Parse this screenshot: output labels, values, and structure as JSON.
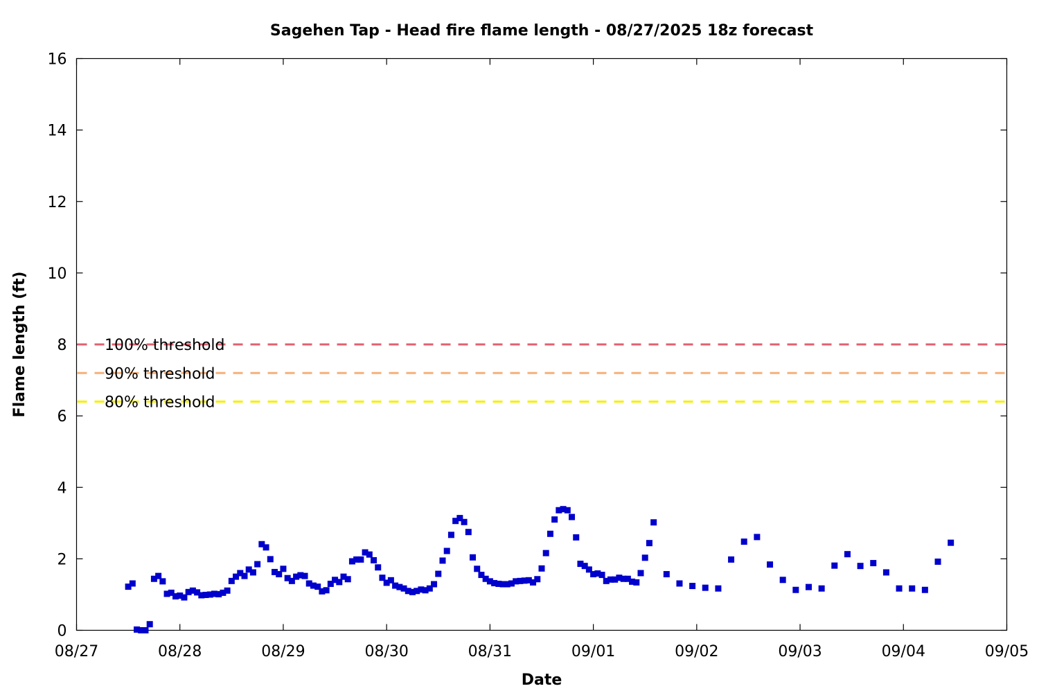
{
  "chart_data": {
    "type": "scatter",
    "title": "Sagehen Tap - Head fire flame length - 08/27/2025 18z forecast",
    "xlabel": "Date",
    "ylabel": "Flame length (ft)",
    "x_tick_labels": [
      "08/27",
      "08/28",
      "08/29",
      "08/30",
      "08/31",
      "09/01",
      "09/02",
      "09/03",
      "09/04",
      "09/05"
    ],
    "y_ticks": [
      0,
      2,
      4,
      6,
      8,
      10,
      12,
      14,
      16
    ],
    "xlim_days": [
      0,
      9
    ],
    "ylim": [
      0,
      16
    ],
    "grid": false,
    "series_color": "#0000cc",
    "thresholds": [
      {
        "label": "100% threshold",
        "value": 8.0,
        "color": "#e06070"
      },
      {
        "label": "90% threshold",
        "value": 7.2,
        "color": "#f5b07a"
      },
      {
        "label": "80% threshold",
        "value": 6.4,
        "color": "#f5f000"
      }
    ],
    "points": [
      {
        "day": "08/27",
        "hours": [
          12,
          13,
          14,
          15,
          16,
          17,
          18,
          19,
          20,
          21,
          22,
          23
        ],
        "y": [
          1.22,
          1.31,
          0.02,
          0.0,
          0.0,
          0.17,
          1.44,
          1.52,
          1.37,
          1.02,
          1.05,
          0.95
        ]
      },
      {
        "day": "08/28",
        "hours": [
          0,
          1,
          2,
          3,
          4,
          5,
          6,
          7,
          8,
          9,
          10,
          11,
          12,
          13,
          14,
          15,
          16,
          17,
          18,
          19,
          20,
          21,
          22,
          23
        ],
        "y": [
          0.97,
          0.92,
          1.07,
          1.11,
          1.06,
          0.98,
          0.99,
          1.0,
          1.02,
          1.01,
          1.05,
          1.11,
          1.38,
          1.5,
          1.6,
          1.52,
          1.7,
          1.62,
          1.85,
          2.41,
          2.32,
          1.99,
          1.63,
          1.57
        ]
      },
      {
        "day": "08/29",
        "hours": [
          0,
          1,
          2,
          3,
          4,
          5,
          6,
          7,
          8,
          9,
          10,
          11,
          12,
          13,
          14,
          15,
          16,
          17,
          18,
          19,
          20,
          21,
          22,
          23
        ],
        "y": [
          1.72,
          1.46,
          1.38,
          1.5,
          1.54,
          1.52,
          1.31,
          1.25,
          1.22,
          1.09,
          1.12,
          1.3,
          1.41,
          1.35,
          1.5,
          1.43,
          1.93,
          1.98,
          1.98,
          2.18,
          2.12,
          1.96,
          1.76,
          1.47
        ]
      },
      {
        "day": "08/30",
        "hours": [
          0,
          1,
          2,
          3,
          4,
          5,
          6,
          7,
          8,
          9,
          10,
          11,
          12,
          13,
          14,
          15,
          16,
          17,
          18,
          19,
          20,
          21,
          22,
          23
        ],
        "y": [
          1.33,
          1.4,
          1.25,
          1.21,
          1.17,
          1.1,
          1.07,
          1.1,
          1.14,
          1.12,
          1.17,
          1.29,
          1.58,
          1.95,
          2.22,
          2.67,
          3.06,
          3.14,
          3.03,
          2.75,
          2.04,
          1.72,
          1.55,
          1.44
        ]
      },
      {
        "day": "08/31",
        "hours": [
          0,
          1,
          2,
          3,
          4,
          5,
          6,
          7,
          8,
          9,
          10,
          11,
          12,
          13,
          14,
          15,
          16,
          17,
          18,
          19,
          20,
          21,
          22,
          23
        ],
        "y": [
          1.37,
          1.32,
          1.3,
          1.29,
          1.29,
          1.31,
          1.37,
          1.38,
          1.39,
          1.4,
          1.34,
          1.43,
          1.73,
          2.16,
          2.7,
          3.1,
          3.36,
          3.39,
          3.36,
          3.17,
          2.6,
          1.86,
          1.8,
          1.7
        ]
      },
      {
        "day": "09/01",
        "hours": [
          0,
          1,
          2,
          3,
          4,
          5,
          6,
          7,
          8,
          9,
          10,
          11,
          12,
          13,
          14,
          17,
          20,
          23
        ],
        "y": [
          1.57,
          1.59,
          1.55,
          1.38,
          1.42,
          1.42,
          1.47,
          1.44,
          1.44,
          1.36,
          1.34,
          1.6,
          2.03,
          2.44,
          3.02,
          1.57,
          1.31,
          1.24
        ]
      },
      {
        "day": "09/02",
        "hours": [
          2,
          5,
          8,
          11,
          14,
          17,
          20,
          23
        ],
        "y": [
          1.19,
          1.17,
          1.98,
          2.48,
          2.61,
          1.84,
          1.41,
          1.13
        ]
      },
      {
        "day": "09/03",
        "hours": [
          2,
          5,
          8,
          11,
          14,
          17,
          20,
          23
        ],
        "y": [
          1.21,
          1.17,
          1.81,
          2.13,
          1.8,
          1.88,
          1.62,
          1.17
        ]
      },
      {
        "day": "09/04",
        "hours": [
          2,
          5,
          8,
          11
        ],
        "y": [
          1.17,
          1.13,
          1.92,
          2.45
        ]
      }
    ]
  }
}
